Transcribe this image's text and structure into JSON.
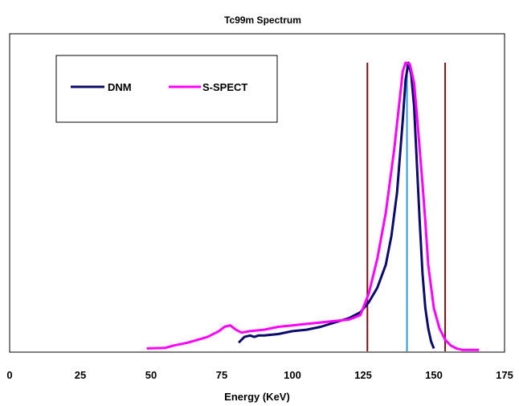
{
  "chart_data": {
    "type": "line",
    "title": "Tc99m Spectrum",
    "xlabel": "Energy (KeV)",
    "ylabel": "",
    "xlim": [
      0,
      175
    ],
    "ylim": [
      0,
      1.0
    ],
    "xticks": [
      "0",
      "25",
      "50",
      "75",
      "100",
      "125",
      "150",
      "175"
    ],
    "grid": false,
    "legend": {
      "position": "top-left"
    },
    "series": [
      {
        "name": "DNM",
        "color": "#0b0b6b",
        "points": [
          [
            81,
            0.03
          ],
          [
            83,
            0.05
          ],
          [
            85,
            0.055
          ],
          [
            86.5,
            0.05
          ],
          [
            88,
            0.055
          ],
          [
            90,
            0.055
          ],
          [
            95,
            0.06
          ],
          [
            100,
            0.07
          ],
          [
            105,
            0.075
          ],
          [
            110,
            0.085
          ],
          [
            115,
            0.1
          ],
          [
            120,
            0.115
          ],
          [
            124,
            0.135
          ],
          [
            127,
            0.17
          ],
          [
            130,
            0.22
          ],
          [
            133,
            0.3
          ],
          [
            135,
            0.4
          ],
          [
            137,
            0.55
          ],
          [
            139,
            0.8
          ],
          [
            140,
            0.94
          ],
          [
            141,
            1.0
          ],
          [
            142,
            0.96
          ],
          [
            143,
            0.85
          ],
          [
            144,
            0.65
          ],
          [
            145,
            0.45
          ],
          [
            146,
            0.27
          ],
          [
            147,
            0.15
          ],
          [
            148,
            0.08
          ],
          [
            149,
            0.035
          ],
          [
            150,
            0.01
          ]
        ]
      },
      {
        "name": "S-SPECT",
        "color": "#ff00ff",
        "points": [
          [
            48.5,
            0.01
          ],
          [
            55,
            0.012
          ],
          [
            58,
            0.02
          ],
          [
            63,
            0.03
          ],
          [
            70,
            0.05
          ],
          [
            74,
            0.07
          ],
          [
            76,
            0.085
          ],
          [
            78,
            0.09
          ],
          [
            80,
            0.075
          ],
          [
            82,
            0.065
          ],
          [
            85,
            0.07
          ],
          [
            90,
            0.075
          ],
          [
            95,
            0.085
          ],
          [
            100,
            0.09
          ],
          [
            105,
            0.095
          ],
          [
            110,
            0.1
          ],
          [
            115,
            0.105
          ],
          [
            120,
            0.11
          ],
          [
            124,
            0.125
          ],
          [
            127,
            0.2
          ],
          [
            130,
            0.32
          ],
          [
            133,
            0.48
          ],
          [
            136,
            0.7
          ],
          [
            138,
            0.88
          ],
          [
            139,
            0.97
          ],
          [
            140,
            1.0
          ],
          [
            141.5,
            0.995
          ],
          [
            143,
            0.93
          ],
          [
            144,
            0.82
          ],
          [
            145,
            0.7
          ],
          [
            146,
            0.58
          ],
          [
            147,
            0.45
          ],
          [
            148,
            0.3
          ],
          [
            150,
            0.15
          ],
          [
            152,
            0.08
          ],
          [
            154,
            0.04
          ],
          [
            156,
            0.02
          ],
          [
            158,
            0.01
          ],
          [
            160,
            0.005
          ],
          [
            166,
            0.005
          ]
        ]
      }
    ],
    "vertical_lines": [
      {
        "x": 126.5,
        "color": "#7a1010"
      },
      {
        "x": 154,
        "color": "#7a1010"
      },
      {
        "x": 140.5,
        "color": "#2d9bd6"
      }
    ]
  }
}
